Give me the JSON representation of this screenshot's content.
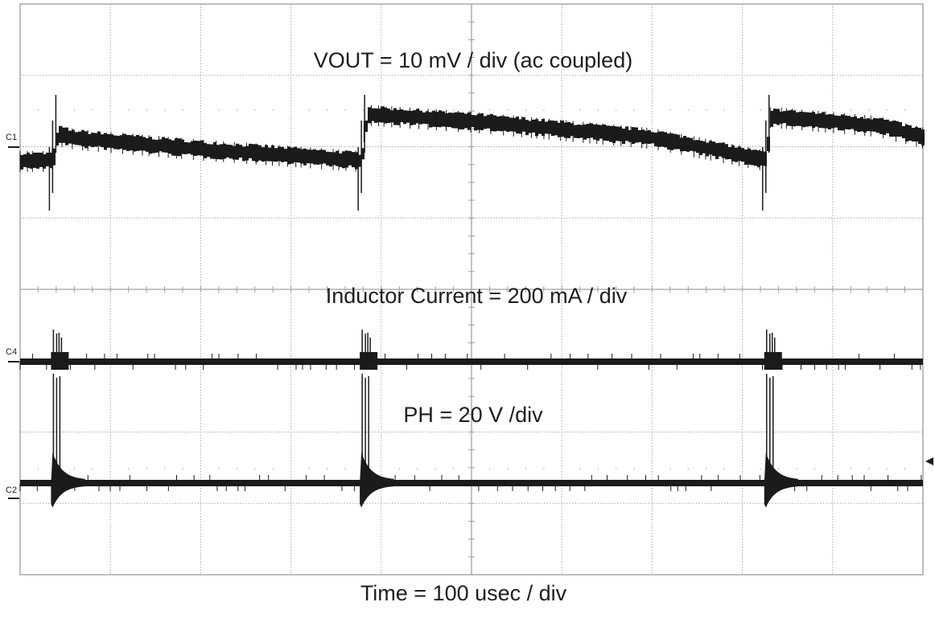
{
  "chart_data": {
    "type": "line",
    "title": "Oscilloscope capture",
    "xlabel": "Time = 100 usec / div",
    "ylabel": "",
    "grid": true,
    "divisions": {
      "x": 10,
      "y": 8
    },
    "xlim_us": [
      0,
      1000
    ],
    "annotations": [
      "VOUT = 10 mV / div (ac coupled)",
      "Inductor Current = 200 mA / div",
      "PH = 20 V /div",
      "Time = 100 usec / div"
    ],
    "channel_markers": [
      "C1",
      "C4",
      "C2"
    ],
    "trigger_marker": "right arrow at PH level",
    "pulse_times_us": [
      36,
      378,
      826
    ],
    "series": [
      {
        "name": "VOUT",
        "channel": "C1",
        "scale": "10 mV/div (ac coupled)",
        "ground_div": 1.0,
        "points_us_mv": [
          [
            0,
            -1.9
          ],
          [
            35,
            -1.9
          ],
          [
            40,
            1.8
          ],
          [
            60,
            1.2
          ],
          [
            200,
            -0.3
          ],
          [
            377,
            -1.9
          ],
          [
            383,
            4.6
          ],
          [
            500,
            3.6
          ],
          [
            700,
            1.3
          ],
          [
            825,
            -1.8
          ],
          [
            831,
            4.3
          ],
          [
            950,
            3.0
          ],
          [
            1000,
            1.4
          ]
        ],
        "noise_band_mv": 2.2
      },
      {
        "name": "Inductor Current",
        "channel": "C4",
        "scale": "200 mA/div",
        "baseline_ma": 0,
        "pulse_peak_ma": 80
      },
      {
        "name": "PH",
        "channel": "C2",
        "scale": "20 V/div",
        "baseline_v": 0,
        "pulse_peak_v": 30,
        "ringing_v": 8
      }
    ]
  },
  "labels": {
    "vout": "VOUT = 10 mV / div (ac coupled)",
    "il": "Inductor Current = 200 mA / div",
    "ph": "PH = 20 V /div",
    "time": "Time = 100 usec / div",
    "c1": "C1",
    "c4": "C4",
    "c2": "C2"
  },
  "colors": {
    "trace": "#1b1b1b",
    "grid": "#a8a8a8",
    "axis": "#a0a0a0",
    "border": "#a8a8a8"
  }
}
